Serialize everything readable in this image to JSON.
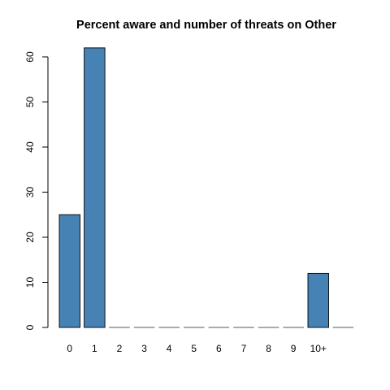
{
  "chart_data": {
    "type": "bar",
    "title": "Percent aware and number of threats on Other",
    "xlabel": "",
    "ylabel": "",
    "categories": [
      "0",
      "1",
      "2",
      "3",
      "4",
      "5",
      "6",
      "7",
      "8",
      "9",
      "10+",
      ""
    ],
    "values": [
      25,
      62,
      0,
      0,
      0,
      0,
      0,
      0,
      0,
      0,
      12,
      0
    ],
    "ylim": [
      0,
      62
    ],
    "yticks": [
      0,
      10,
      20,
      30,
      40,
      50,
      60
    ],
    "bar_color": "#4682B4",
    "bar_outline_color": "#000000",
    "grid": false
  }
}
